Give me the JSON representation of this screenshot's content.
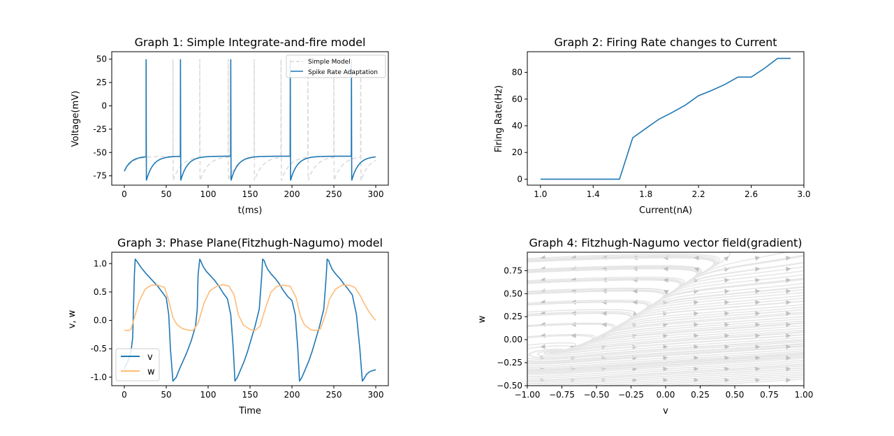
{
  "chart_data": [
    {
      "type": "line",
      "title": "Graph 1: Simple Integrate-and-fire model",
      "xlabel": "t(ms)",
      "ylabel": "Voltage(mV)",
      "xlim": [
        -15,
        315
      ],
      "ylim": [
        -85,
        58
      ],
      "xticks": [
        0,
        50,
        100,
        150,
        200,
        250,
        300
      ],
      "yticks": [
        -75,
        -50,
        -25,
        0,
        25,
        50
      ],
      "legend_position": "top-right",
      "series": [
        {
          "name": "Simple Model",
          "color": "#d9d9d9",
          "dash": "dashed",
          "model": "lif",
          "v_rest": -70,
          "v_reset": -80,
          "v_threshold": -54,
          "v_spike": 50,
          "tau": 10,
          "spike_times": [
            58,
            90,
            124,
            155,
            187,
            219,
            250,
            282
          ]
        },
        {
          "name": "Spike Rate Adaptation",
          "color": "#1f77b4",
          "dash": "solid",
          "model": "lif",
          "v_rest": -70,
          "v_reset": -80,
          "v_threshold": -54,
          "v_spike": 50,
          "tau": 8,
          "spike_times": [
            26,
            67,
            127,
            198,
            271
          ]
        }
      ]
    },
    {
      "type": "line",
      "title": "Graph 2: Firing Rate changes to Current",
      "xlabel": "Current(nA)",
      "ylabel": "Firing Rate(Hz)",
      "xlim": [
        0.9,
        3.0
      ],
      "ylim": [
        -4.5,
        95.5
      ],
      "xticks": [
        "1.0",
        "1.4",
        "1.8",
        "2.2",
        "2.6",
        "3.0"
      ],
      "yticks": [
        0,
        20,
        40,
        60,
        80
      ],
      "series": [
        {
          "name": "",
          "color": "#1f77b4",
          "x": [
            1.0,
            1.1,
            1.2,
            1.3,
            1.4,
            1.5,
            1.6,
            1.7,
            1.8,
            1.9,
            2.0,
            2.1,
            2.2,
            2.3,
            2.4,
            2.5,
            2.6,
            2.7,
            2.8,
            2.9
          ],
          "y": [
            0,
            0,
            0,
            0,
            0,
            0,
            0,
            31,
            38,
            45,
            50,
            55.5,
            62.5,
            66.5,
            71,
            76.5,
            76.5,
            83,
            90.5,
            90.5
          ]
        }
      ]
    },
    {
      "type": "line",
      "title": "Graph 3: Phase Plane(Fitzhugh-Nagumo) model",
      "xlabel": "Time",
      "ylabel": "v, w",
      "xlim": [
        -15,
        315
      ],
      "ylim": [
        -1.15,
        1.2
      ],
      "xticks": [
        0,
        50,
        100,
        150,
        200,
        250,
        300
      ],
      "yticks": [
        "-1.0",
        "-0.5",
        "0.0",
        "0.5",
        "1.0"
      ],
      "legend_position": "lower-left",
      "series": [
        {
          "name": "v",
          "color": "#1f77b4",
          "x": [
            0,
            5,
            8,
            10,
            12,
            13,
            16,
            20,
            25,
            30,
            35,
            40,
            45,
            50,
            53,
            55,
            58,
            62,
            66,
            70,
            75,
            80,
            85,
            87,
            88,
            90,
            91,
            94,
            98,
            103,
            108,
            113,
            118,
            123,
            127,
            130,
            132,
            135,
            139,
            143,
            147,
            151,
            156,
            161,
            164,
            165,
            167,
            168,
            171,
            175,
            180,
            185,
            190,
            195,
            200,
            204,
            207,
            209,
            212,
            216,
            220,
            224,
            228,
            233,
            238,
            241,
            242,
            244,
            245,
            248,
            252,
            257,
            262,
            267,
            272,
            277,
            281,
            284,
            286,
            289,
            293,
            297,
            300
          ],
          "y": [
            -0.85,
            -0.7,
            -0.55,
            -0.3,
            0.8,
            1.08,
            1.02,
            0.93,
            0.84,
            0.76,
            0.68,
            0.6,
            0.5,
            0.4,
            0.1,
            -0.5,
            -1.07,
            -1.0,
            -0.85,
            -0.72,
            -0.55,
            -0.35,
            -0.1,
            0.2,
            0.8,
            1.08,
            1.05,
            0.95,
            0.86,
            0.78,
            0.7,
            0.6,
            0.48,
            0.38,
            0.1,
            -0.5,
            -1.07,
            -1.0,
            -0.86,
            -0.72,
            -0.55,
            -0.35,
            -0.1,
            0.2,
            0.8,
            1.08,
            1.05,
            1.0,
            0.9,
            0.82,
            0.74,
            0.64,
            0.52,
            0.42,
            0.35,
            0.1,
            -0.5,
            -1.07,
            -1.0,
            -0.86,
            -0.72,
            -0.55,
            -0.35,
            -0.1,
            0.2,
            0.8,
            1.08,
            1.05,
            1.0,
            0.9,
            0.82,
            0.74,
            0.64,
            0.55,
            0.45,
            0.1,
            -0.5,
            -1.07,
            -1.03,
            -0.95,
            -0.9,
            -0.88,
            -0.87
          ]
        },
        {
          "name": "w",
          "color": "#ffbb78",
          "x": [
            0,
            5,
            8,
            12,
            18,
            25,
            32,
            40,
            48,
            53,
            58,
            63,
            70,
            76,
            82,
            88,
            95,
            102,
            110,
            118,
            125,
            131,
            136,
            142,
            150,
            156,
            162,
            168,
            175,
            182,
            190,
            198,
            205,
            210,
            215,
            222,
            228,
            234,
            240,
            245,
            252,
            260,
            268,
            275,
            281,
            286,
            292,
            297,
            300
          ],
          "y": [
            -0.17,
            -0.18,
            -0.16,
            0.05,
            0.35,
            0.55,
            0.62,
            0.62,
            0.58,
            0.35,
            0.05,
            -0.08,
            -0.15,
            -0.17,
            -0.18,
            -0.05,
            0.3,
            0.52,
            0.6,
            0.63,
            0.6,
            0.45,
            0.1,
            -0.08,
            -0.16,
            -0.18,
            -0.1,
            0.2,
            0.5,
            0.6,
            0.62,
            0.6,
            0.4,
            0.08,
            -0.08,
            -0.16,
            -0.18,
            -0.15,
            0.1,
            0.38,
            0.55,
            0.62,
            0.62,
            0.58,
            0.45,
            0.3,
            0.15,
            0.05,
            0.0
          ]
        }
      ]
    },
    {
      "type": "streamplot",
      "title": "Graph 4: Fitzhugh-Nagumo vector field(gradient)",
      "xlabel": "v",
      "ylabel": "w",
      "xlim": [
        -1.0,
        1.0
      ],
      "ylim": [
        -0.5,
        0.95
      ],
      "xticks": [
        "−1.00",
        "−0.75",
        "−0.50",
        "−0.25",
        "0.00",
        "0.25",
        "0.50",
        "0.75",
        "1.00"
      ],
      "yticks": [
        "−0.50",
        "−0.25",
        "0.00",
        "0.25",
        "0.50",
        "0.75"
      ],
      "stream_color": "#e6e6e6",
      "arrow_color": "#c0c0c0"
    }
  ]
}
